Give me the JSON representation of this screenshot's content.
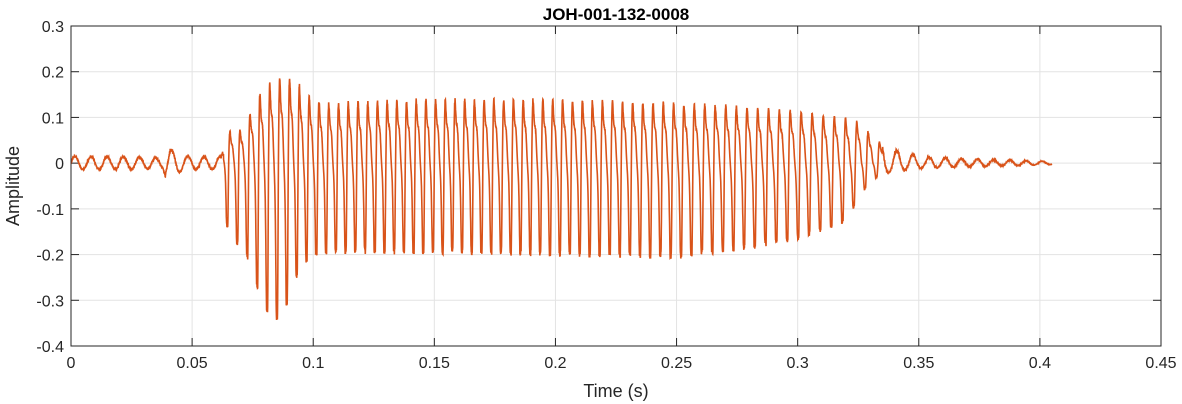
{
  "chart_data": {
    "type": "line",
    "title": "JOH-001-132-0008",
    "xlabel": "Time (s)",
    "ylabel": "Amplitude",
    "xlim": [
      0,
      0.45
    ],
    "ylim": [
      -0.4,
      0.3
    ],
    "xticks": [
      0,
      0.05,
      0.1,
      0.15,
      0.2,
      0.25,
      0.3,
      0.35,
      0.4,
      0.45
    ],
    "xtick_labels": [
      "0",
      "0.05",
      "0.1",
      "0.15",
      "0.2",
      "0.25",
      "0.3",
      "0.35",
      "0.4",
      "0.45"
    ],
    "yticks": [
      -0.4,
      -0.3,
      -0.2,
      -0.1,
      0,
      0.1,
      0.2,
      0.3
    ],
    "ytick_labels": [
      "-0.4",
      "-0.3",
      "-0.2",
      "-0.1",
      "0",
      "0.1",
      "0.2",
      "0.3"
    ],
    "grid": true,
    "box": true,
    "series": [
      {
        "color": "#D95319",
        "sample_rate_hz": 16000,
        "duration_s": 0.405,
        "envelope": {
          "t": [
            0,
            0.02,
            0.038,
            0.039,
            0.045,
            0.05,
            0.062,
            0.064,
            0.068,
            0.072,
            0.076,
            0.08,
            0.084,
            0.088,
            0.092,
            0.095,
            0.1,
            0.105,
            0.11,
            0.12,
            0.15,
            0.2,
            0.25,
            0.28,
            0.3,
            0.31,
            0.32,
            0.325,
            0.33,
            0.335,
            0.34,
            0.345,
            0.35,
            0.36,
            0.38,
            0.4,
            0.405
          ],
          "pos": [
            0.015,
            0.015,
            0.012,
            0.04,
            0.02,
            0.015,
            0.015,
            0.09,
            0.08,
            0.1,
            0.17,
            0.2,
            0.22,
            0.23,
            0.23,
            0.2,
            0.17,
            0.16,
            0.16,
            0.165,
            0.17,
            0.17,
            0.16,
            0.15,
            0.14,
            0.13,
            0.12,
            0.11,
            0.08,
            0.05,
            0.03,
            0.025,
            0.015,
            0.012,
            0.008,
            0.005,
            0.003
          ],
          "neg": [
            -0.015,
            -0.015,
            -0.012,
            -0.035,
            -0.02,
            -0.015,
            -0.015,
            -0.14,
            -0.18,
            -0.2,
            -0.27,
            -0.32,
            -0.36,
            -0.33,
            -0.27,
            -0.23,
            -0.21,
            -0.2,
            -0.2,
            -0.2,
            -0.2,
            -0.205,
            -0.21,
            -0.19,
            -0.17,
            -0.15,
            -0.13,
            -0.08,
            -0.04,
            -0.025,
            -0.02,
            -0.015,
            -0.012,
            -0.01,
            -0.007,
            -0.004,
            -0.003
          ]
        }
      }
    ]
  }
}
